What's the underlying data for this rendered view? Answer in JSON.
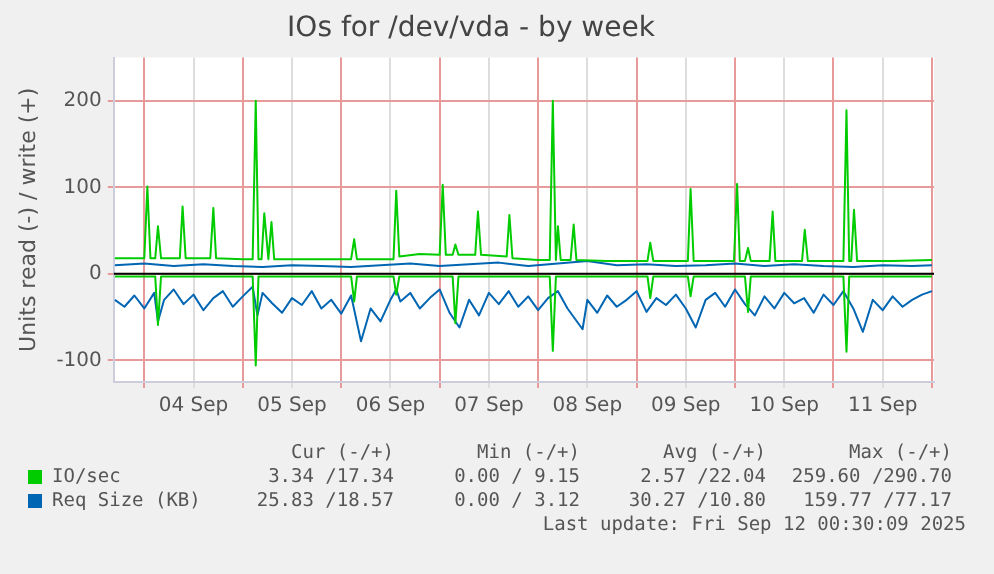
{
  "chart_data": {
    "type": "line",
    "title": "IOs for /dev/vda - by week",
    "ylabel": "Units read (-) / write (+)",
    "xlim": [
      "2025-09-03T16:34",
      "2025-09-12T00:30"
    ],
    "xticks": [
      {
        "value": "2025-09-04T00:00",
        "label": null
      },
      {
        "value": "2025-09-04T12:00",
        "label": "04 Sep"
      },
      {
        "value": "2025-09-05T00:00",
        "label": null
      },
      {
        "value": "2025-09-05T12:00",
        "label": "05 Sep"
      },
      {
        "value": "2025-09-06T00:00",
        "label": null
      },
      {
        "value": "2025-09-06T12:00",
        "label": "06 Sep"
      },
      {
        "value": "2025-09-07T00:00",
        "label": null
      },
      {
        "value": "2025-09-07T12:00",
        "label": "07 Sep"
      },
      {
        "value": "2025-09-08T00:00",
        "label": null
      },
      {
        "value": "2025-09-08T12:00",
        "label": "08 Sep"
      },
      {
        "value": "2025-09-09T00:00",
        "label": null
      },
      {
        "value": "2025-09-09T12:00",
        "label": "09 Sep"
      },
      {
        "value": "2025-09-10T00:00",
        "label": null
      },
      {
        "value": "2025-09-10T12:00",
        "label": "10 Sep"
      },
      {
        "value": "2025-09-11T00:00",
        "label": null
      },
      {
        "value": "2025-09-11T12:00",
        "label": "11 Sep"
      },
      {
        "value": "2025-09-12T00:00",
        "label": null
      }
    ],
    "ylim": [
      -125,
      250
    ],
    "yticks": [
      -100,
      0,
      100,
      200
    ],
    "grid": true,
    "legend": "bottom",
    "marker": "none",
    "line_style": "solid",
    "ref_lines": [
      {
        "axis": "y",
        "value": 0,
        "color": "#000000"
      }
    ],
    "series": [
      {
        "color": "#00cc00",
        "x": [
          "2025-09-03T16:50",
          "2025-09-04T00:00",
          "2025-09-04T00:45",
          "2025-09-04T01:30",
          "2025-09-04T02:40",
          "2025-09-04T03:20",
          "2025-09-04T04:05",
          "2025-09-04T08:40",
          "2025-09-04T09:20",
          "2025-09-04T10:05",
          "2025-09-04T16:05",
          "2025-09-04T16:50",
          "2025-09-04T17:30",
          "2025-09-05T00:00",
          "2025-09-05T02:25",
          "2025-09-05T03:10",
          "2025-09-05T03:50",
          "2025-09-05T04:35",
          "2025-09-05T05:15",
          "2025-09-05T06:15",
          "2025-09-05T07:00",
          "2025-09-05T07:40",
          "2025-09-05T14:25",
          "2025-09-06T02:25",
          "2025-09-06T03:10",
          "2025-09-06T03:50",
          "2025-09-06T12:45",
          "2025-09-06T13:25",
          "2025-09-06T14:10",
          "2025-09-06T19:10",
          "2025-09-07T00:00",
          "2025-09-07T00:45",
          "2025-09-07T01:30",
          "2025-09-07T03:10",
          "2025-09-07T03:50",
          "2025-09-07T04:35",
          "2025-09-07T08:40",
          "2025-09-07T09:20",
          "2025-09-07T10:05",
          "2025-09-07T16:20",
          "2025-09-07T17:00",
          "2025-09-07T17:45",
          "2025-09-08T00:00",
          "2025-09-08T02:50",
          "2025-09-08T03:35",
          "2025-09-08T04:20",
          "2025-09-08T04:50",
          "2025-09-08T05:30",
          "2025-09-08T07:55",
          "2025-09-08T08:40",
          "2025-09-08T09:20",
          "2025-09-08T16:50",
          "2025-09-09T02:40",
          "2025-09-09T03:20",
          "2025-09-09T04:05",
          "2025-09-09T12:30",
          "2025-09-09T13:10",
          "2025-09-09T13:55",
          "2025-09-09T23:45",
          "2025-09-10T00:30",
          "2025-09-10T01:10",
          "2025-09-10T02:25",
          "2025-09-10T03:10",
          "2025-09-10T03:50",
          "2025-09-10T08:25",
          "2025-09-10T09:10",
          "2025-09-10T09:50",
          "2025-09-10T16:20",
          "2025-09-10T17:00",
          "2025-09-10T17:45",
          "2025-09-11T00:00",
          "2025-09-11T02:25",
          "2025-09-11T03:10",
          "2025-09-11T03:50",
          "2025-09-11T04:20",
          "2025-09-11T05:00",
          "2025-09-11T05:45",
          "2025-09-11T14:25",
          "2025-09-12T00:00"
        ],
        "values": [
          18,
          18,
          101,
          18,
          18,
          55,
          18,
          18,
          78,
          18,
          18,
          76,
          18,
          17,
          17,
          200,
          17,
          17,
          70,
          17,
          60,
          17,
          17,
          17,
          40,
          17,
          17,
          96,
          20,
          23,
          22,
          103,
          22,
          22,
          34,
          22,
          22,
          72,
          22,
          20,
          68,
          18,
          16,
          16,
          200,
          16,
          55,
          16,
          16,
          57,
          16,
          15,
          15,
          36,
          15,
          15,
          98,
          15,
          15,
          104,
          15,
          15,
          30,
          15,
          15,
          72,
          15,
          15,
          51,
          15,
          15,
          15,
          189,
          15,
          15,
          74,
          15,
          15,
          16
        ]
      },
      {
        "name": "IO/sec",
        "color": "#00cc00",
        "x": [
          "2025-09-03T16:50",
          "2025-09-04T02:40",
          "2025-09-04T03:20",
          "2025-09-04T04:05",
          "2025-09-05T02:25",
          "2025-09-05T03:10",
          "2025-09-05T03:50",
          "2025-09-06T02:25",
          "2025-09-06T03:10",
          "2025-09-06T03:50",
          "2025-09-06T12:45",
          "2025-09-06T13:25",
          "2025-09-06T14:10",
          "2025-09-07T03:10",
          "2025-09-07T03:50",
          "2025-09-07T04:35",
          "2025-09-08T02:50",
          "2025-09-08T03:35",
          "2025-09-08T04:20",
          "2025-09-09T02:40",
          "2025-09-09T03:20",
          "2025-09-09T04:05",
          "2025-09-09T12:30",
          "2025-09-09T13:10",
          "2025-09-09T13:55",
          "2025-09-10T02:25",
          "2025-09-10T03:10",
          "2025-09-10T03:50",
          "2025-09-11T02:25",
          "2025-09-11T03:10",
          "2025-09-11T03:50",
          "2025-09-12T00:00"
        ],
        "values": [
          -3,
          -3,
          -59,
          -3,
          -3,
          -106,
          -3,
          -3,
          -32,
          -3,
          -3,
          -24,
          -3,
          -3,
          -57,
          -3,
          -3,
          -89,
          -3,
          -3,
          -28,
          -3,
          -3,
          -26,
          -3,
          -3,
          -44,
          -3,
          -3,
          -90,
          -3,
          -3
        ]
      },
      {
        "color": "#0066b3",
        "x": [
          "2025-09-03T16:50",
          "2025-09-04T00:00",
          "2025-09-04T07:10",
          "2025-09-04T14:25",
          "2025-09-04T21:35",
          "2025-09-05T04:50",
          "2025-09-05T12:00",
          "2025-09-05T19:10",
          "2025-09-06T02:25",
          "2025-09-06T09:35",
          "2025-09-06T16:50",
          "2025-09-07T00:00",
          "2025-09-07T07:10",
          "2025-09-07T14:25",
          "2025-09-07T21:35",
          "2025-09-08T04:50",
          "2025-09-08T12:00",
          "2025-09-08T19:10",
          "2025-09-09T02:25",
          "2025-09-09T09:35",
          "2025-09-09T16:50",
          "2025-09-10T00:00",
          "2025-09-10T07:10",
          "2025-09-10T14:25",
          "2025-09-10T21:35",
          "2025-09-11T04:50",
          "2025-09-11T12:00",
          "2025-09-11T19:10",
          "2025-09-12T00:00"
        ],
        "values": [
          10,
          12,
          9,
          11,
          9,
          8,
          10,
          9,
          8,
          10,
          12,
          9,
          11,
          13,
          9,
          12,
          15,
          10,
          11,
          9,
          10,
          12,
          9,
          11,
          9,
          8,
          10,
          9,
          10
        ]
      },
      {
        "name": "Req Size (KB)",
        "color": "#0066b3",
        "x": [
          "2025-09-03T16:50",
          "2025-09-03T19:10",
          "2025-09-03T21:35",
          "2025-09-04T00:00",
          "2025-09-04T02:25",
          "2025-09-04T03:20",
          "2025-09-04T04:50",
          "2025-09-04T07:10",
          "2025-09-04T09:35",
          "2025-09-04T12:00",
          "2025-09-04T14:25",
          "2025-09-04T16:50",
          "2025-09-04T19:10",
          "2025-09-04T21:35",
          "2025-09-05T00:00",
          "2025-09-05T02:25",
          "2025-09-05T03:35",
          "2025-09-05T04:50",
          "2025-09-05T07:10",
          "2025-09-05T09:35",
          "2025-09-05T12:00",
          "2025-09-05T14:25",
          "2025-09-05T16:50",
          "2025-09-05T19:10",
          "2025-09-05T21:35",
          "2025-09-06T00:00",
          "2025-09-06T02:25",
          "2025-09-06T04:50",
          "2025-09-06T07:10",
          "2025-09-06T09:35",
          "2025-09-06T12:00",
          "2025-09-06T13:25",
          "2025-09-06T14:25",
          "2025-09-06T16:50",
          "2025-09-06T19:10",
          "2025-09-06T21:35",
          "2025-09-07T00:00",
          "2025-09-07T02:25",
          "2025-09-07T04:50",
          "2025-09-07T07:10",
          "2025-09-07T09:35",
          "2025-09-07T12:00",
          "2025-09-07T14:25",
          "2025-09-07T16:50",
          "2025-09-07T19:10",
          "2025-09-07T21:35",
          "2025-09-08T00:00",
          "2025-09-08T02:25",
          "2025-09-08T04:50",
          "2025-09-08T07:10",
          "2025-09-08T10:50",
          "2025-09-08T12:00",
          "2025-09-08T14:25",
          "2025-09-08T16:50",
          "2025-09-08T19:10",
          "2025-09-08T21:35",
          "2025-09-09T00:00",
          "2025-09-09T02:25",
          "2025-09-09T04:50",
          "2025-09-09T07:10",
          "2025-09-09T09:35",
          "2025-09-09T12:00",
          "2025-09-09T14:25",
          "2025-09-09T16:50",
          "2025-09-09T19:10",
          "2025-09-09T21:35",
          "2025-09-10T00:00",
          "2025-09-10T02:25",
          "2025-09-10T04:50",
          "2025-09-10T07:10",
          "2025-09-10T09:35",
          "2025-09-10T12:00",
          "2025-09-10T14:25",
          "2025-09-10T16:50",
          "2025-09-10T19:10",
          "2025-09-10T21:35",
          "2025-09-11T00:00",
          "2025-09-11T02:25",
          "2025-09-11T04:50",
          "2025-09-11T07:10",
          "2025-09-11T09:35",
          "2025-09-11T12:00",
          "2025-09-11T14:25",
          "2025-09-11T16:50",
          "2025-09-11T19:10",
          "2025-09-11T21:35",
          "2025-09-12T00:00"
        ],
        "values": [
          -30,
          -38,
          -25,
          -40,
          -22,
          -55,
          -30,
          -18,
          -35,
          -24,
          -42,
          -28,
          -20,
          -38,
          -26,
          -15,
          -48,
          -22,
          -34,
          -45,
          -28,
          -36,
          -20,
          -40,
          -30,
          -46,
          -25,
          -78,
          -40,
          -55,
          -30,
          -18,
          -32,
          -22,
          -40,
          -28,
          -18,
          -45,
          -62,
          -30,
          -48,
          -22,
          -35,
          -20,
          -38,
          -26,
          -42,
          -28,
          -20,
          -40,
          -64,
          -30,
          -45,
          -25,
          -38,
          -30,
          -20,
          -44,
          -28,
          -36,
          -24,
          -40,
          -62,
          -30,
          -22,
          -38,
          -18,
          -35,
          -48,
          -26,
          -40,
          -22,
          -34,
          -28,
          -45,
          -24,
          -36,
          -20,
          -40,
          -67,
          -30,
          -42,
          -26,
          -38,
          -30,
          -24,
          -20
        ]
      }
    ],
    "annotations": [
      "Cur (-/+)",
      "Min (-/+)",
      "Avg (-/+)",
      "Max (-/+)",
      "3.34 /17.34",
      "0.00 / 9.15",
      "2.57 /22.04",
      "259.60 /290.70",
      "25.83 /18.57",
      "0.00 / 3.12",
      "30.27 /10.80",
      "159.77 /77.17",
      "Last update: Fri Sep 12 00:30:09 2025"
    ]
  }
}
